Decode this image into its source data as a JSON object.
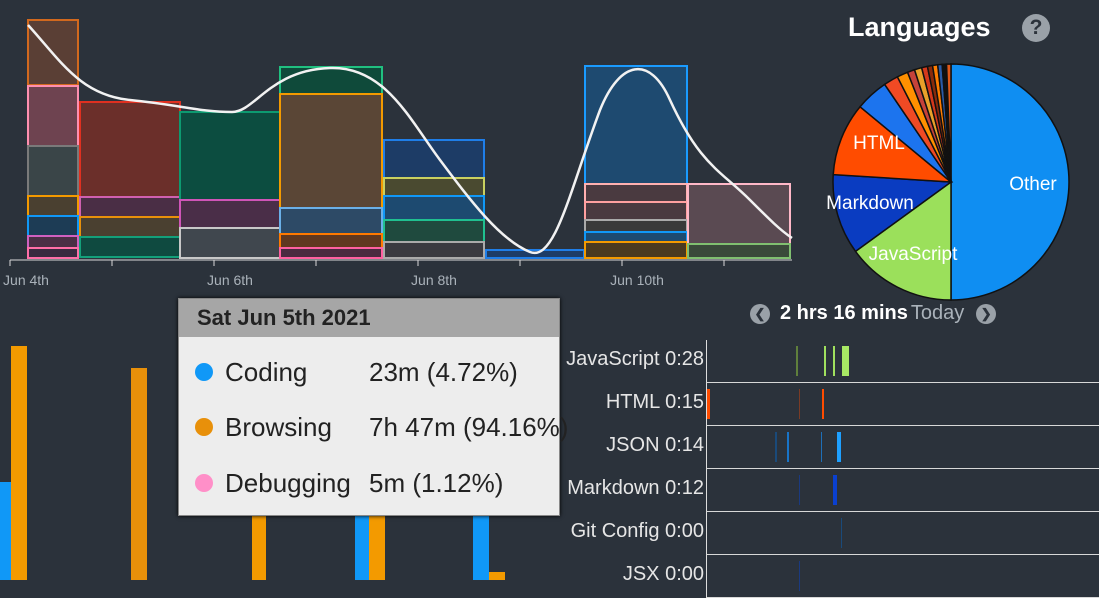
{
  "stack_chart": {
    "x_ticks": [
      "Jun 4th",
      "Jun 6th",
      "Jun 8th",
      "Jun 10th"
    ]
  },
  "languages_pie": {
    "title": "Languages",
    "help_icon": "question-circle-icon",
    "slices": [
      {
        "label": "Other",
        "percent": 50.0,
        "color": "#0f8ef2"
      },
      {
        "label": "JavaScript",
        "percent": 15.0,
        "color": "#9be05b"
      },
      {
        "label": "Markdown",
        "percent": 11.0,
        "color": "#0a3cc1"
      },
      {
        "label": "HTML",
        "percent": 10.0,
        "color": "#ff4c00"
      },
      {
        "label": "",
        "percent": 4.5,
        "color": "#1c74ee"
      },
      {
        "label": "",
        "percent": 2.0,
        "color": "#f04a24"
      },
      {
        "label": "",
        "percent": 1.5,
        "color": "#ff9000"
      },
      {
        "label": "",
        "percent": 1.0,
        "color": "#c6423a"
      },
      {
        "label": "",
        "percent": 1.0,
        "color": "#e8a02a"
      },
      {
        "label": "",
        "percent": 0.8,
        "color": "#d4381c"
      },
      {
        "label": "",
        "percent": 0.7,
        "color": "#8a2a0b"
      },
      {
        "label": "",
        "percent": 0.7,
        "color": "#ff7d00"
      },
      {
        "label": "",
        "percent": 0.6,
        "color": "#2a5aa6"
      },
      {
        "label": "",
        "percent": 0.6,
        "color": "#111111"
      },
      {
        "label": "",
        "percent": 0.6,
        "color": "#e0581a"
      }
    ]
  },
  "timeline_nav": {
    "prev_icon": "chevron-left-icon",
    "duration": "2 hrs 16 mins",
    "period": "Today",
    "next_icon": "chevron-right-icon"
  },
  "tooltip": {
    "date": "Sat Jun 5th 2021",
    "rows": [
      {
        "label": "Coding",
        "value": "23m (4.72%)",
        "color": "#1098f7"
      },
      {
        "label": "Browsing",
        "value": "7h 47m (94.16%)",
        "color": "#e8900a"
      },
      {
        "label": "Debugging",
        "value": "5m (1.12%)",
        "color": "#ff8fc8"
      }
    ]
  },
  "language_timeline": [
    {
      "label": "JavaScript 0:28"
    },
    {
      "label": "HTML 0:15"
    },
    {
      "label": "JSON 0:14"
    },
    {
      "label": "Markdown 0:12"
    },
    {
      "label": "Git Config 0:00"
    },
    {
      "label": "JSX 0:00"
    }
  ],
  "colors": {
    "background": "#2b323b",
    "curve": "#ffffff"
  }
}
